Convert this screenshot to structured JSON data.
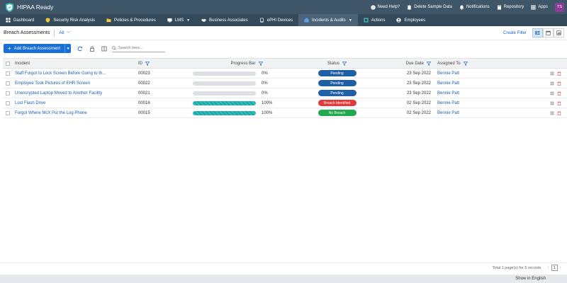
{
  "app": {
    "name": "HIPAA Ready"
  },
  "top_actions": [
    {
      "label": "Need Help?",
      "icon": "help-icon"
    },
    {
      "label": "Delete Sample Data",
      "icon": "trash-icon"
    },
    {
      "label": "Notifications",
      "icon": "bell-icon"
    },
    {
      "label": "Repository",
      "icon": "book-icon"
    },
    {
      "label": "Apps",
      "icon": "grid-icon"
    }
  ],
  "user": {
    "initials": "TS"
  },
  "nav": [
    {
      "label": "Dashboard",
      "icon": "dashboard-icon"
    },
    {
      "label": "Security Risk Analysis",
      "icon": "shield-icon"
    },
    {
      "label": "Policies & Procedures",
      "icon": "folder-icon"
    },
    {
      "label": "LMS",
      "icon": "lms-icon",
      "dropdown": true
    },
    {
      "label": "Business Associates",
      "icon": "handshake-icon"
    },
    {
      "label": "ePHI Devices",
      "icon": "device-icon"
    },
    {
      "label": "Incidents & Audits",
      "icon": "incident-icon",
      "dropdown": true,
      "active": true
    },
    {
      "label": "Actions",
      "icon": "actions-icon"
    },
    {
      "label": "Employees",
      "icon": "employees-icon"
    }
  ],
  "toolbar": {
    "title": "Breach Assessments",
    "view": "All",
    "create_filter": "Create Filter"
  },
  "actions_bar": {
    "add_label": "Add Breach Assessment",
    "search_placeholder": "Search here..."
  },
  "columns": {
    "incident": "Incident",
    "id": "ID",
    "progress": "Progress Bar",
    "status": "Status",
    "due": "Due Date",
    "assigned": "Assigned To"
  },
  "rows": [
    {
      "incident": "Staff Forgot to Lock Screen Before Going to th...",
      "id": "00023",
      "progress": 0,
      "progress_label": "0%",
      "status": "Pending",
      "status_color": "#1f5fa8",
      "due": "23 Sep 2022",
      "assigned": "Bennie Patt"
    },
    {
      "incident": "Employee Took Pictures of EHR Screen",
      "id": "00022",
      "progress": 0,
      "progress_label": "0%",
      "status": "Pending",
      "status_color": "#1f5fa8",
      "due": "23 Sep 2022",
      "assigned": "Bennie Patt"
    },
    {
      "incident": "Unencrypted Laptop Moved to Another Facility",
      "id": "00021",
      "progress": 0,
      "progress_label": "0%",
      "status": "Pending",
      "status_color": "#1f5fa8",
      "due": "23 Sep 2022",
      "assigned": "Bennie Patt"
    },
    {
      "incident": "Lost Flash Drive",
      "id": "00016",
      "progress": 100,
      "progress_label": "100%",
      "status": "Breach Identified",
      "status_color": "#e03a3a",
      "due": "02 Sep 2022",
      "assigned": "Bennie Patt"
    },
    {
      "incident": "Forgot Where McX Put the Log Phone",
      "id": "00015",
      "progress": 100,
      "progress_label": "100%",
      "status": "No Breach",
      "status_color": "#20a94f",
      "due": "02 Sep 2022",
      "assigned": "Bennie Patt"
    }
  ],
  "footer": {
    "summary": "Total 1 page(s) for 5 records",
    "page": "1"
  },
  "language": {
    "label": "Show in English"
  }
}
